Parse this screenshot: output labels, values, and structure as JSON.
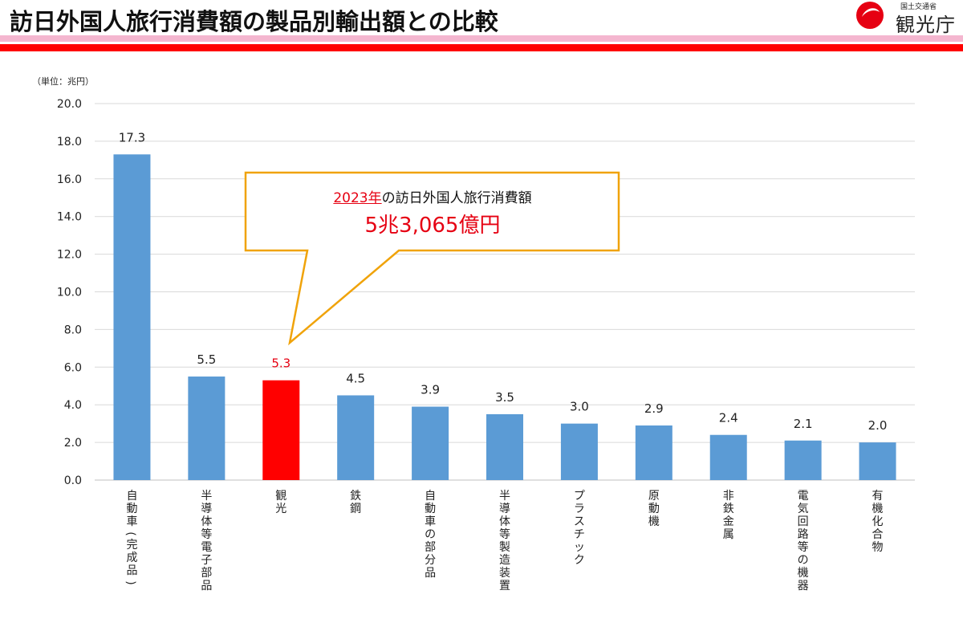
{
  "header": {
    "title": "訪日外国人旅行消費額の製品別輸出額との比較",
    "logo_sub": "国土交通省",
    "logo_main": "観光庁"
  },
  "colors": {
    "bar_default": "#5b9bd5",
    "bar_highlight": "#ff0000",
    "highlight_label": "#e60012",
    "callout_border": "#f0a30a",
    "grid": "#d9d9d9",
    "band_pink": "#f4b6cf",
    "band_red": "#ff0000"
  },
  "callout": {
    "year": "2023年",
    "text": "の訪日外国人旅行消費額",
    "amount": "5兆3,065億円"
  },
  "chart_data": {
    "type": "bar",
    "title": "",
    "unit_label": "（単位：兆円）",
    "xlabel": "",
    "ylabel": "",
    "ylim": [
      0,
      20
    ],
    "yticks": [
      0,
      2,
      4,
      6,
      8,
      10,
      12,
      14,
      16,
      18,
      20
    ],
    "ytick_labels": [
      "0.0",
      "2.0",
      "4.0",
      "6.0",
      "8.0",
      "10.0",
      "12.0",
      "14.0",
      "16.0",
      "18.0",
      "20.0"
    ],
    "grid": true,
    "categories": [
      "自動車（完成品）",
      "半導体等電子部品",
      "観光",
      "鉄鋼",
      "自動車の部分品",
      "半導体等製造装置",
      "プラスチック",
      "原動機",
      "非鉄金属",
      "電気回路等の機器",
      "有機化合物"
    ],
    "values": [
      17.3,
      5.5,
      5.3,
      4.5,
      3.9,
      3.5,
      3.0,
      2.9,
      2.4,
      2.1,
      2.0
    ],
    "data_labels": [
      "17.3",
      "5.5",
      "5.3",
      "4.5",
      "3.9",
      "3.5",
      "3.0",
      "2.9",
      "2.4",
      "2.1",
      "2.0"
    ],
    "highlight_index": 2
  }
}
